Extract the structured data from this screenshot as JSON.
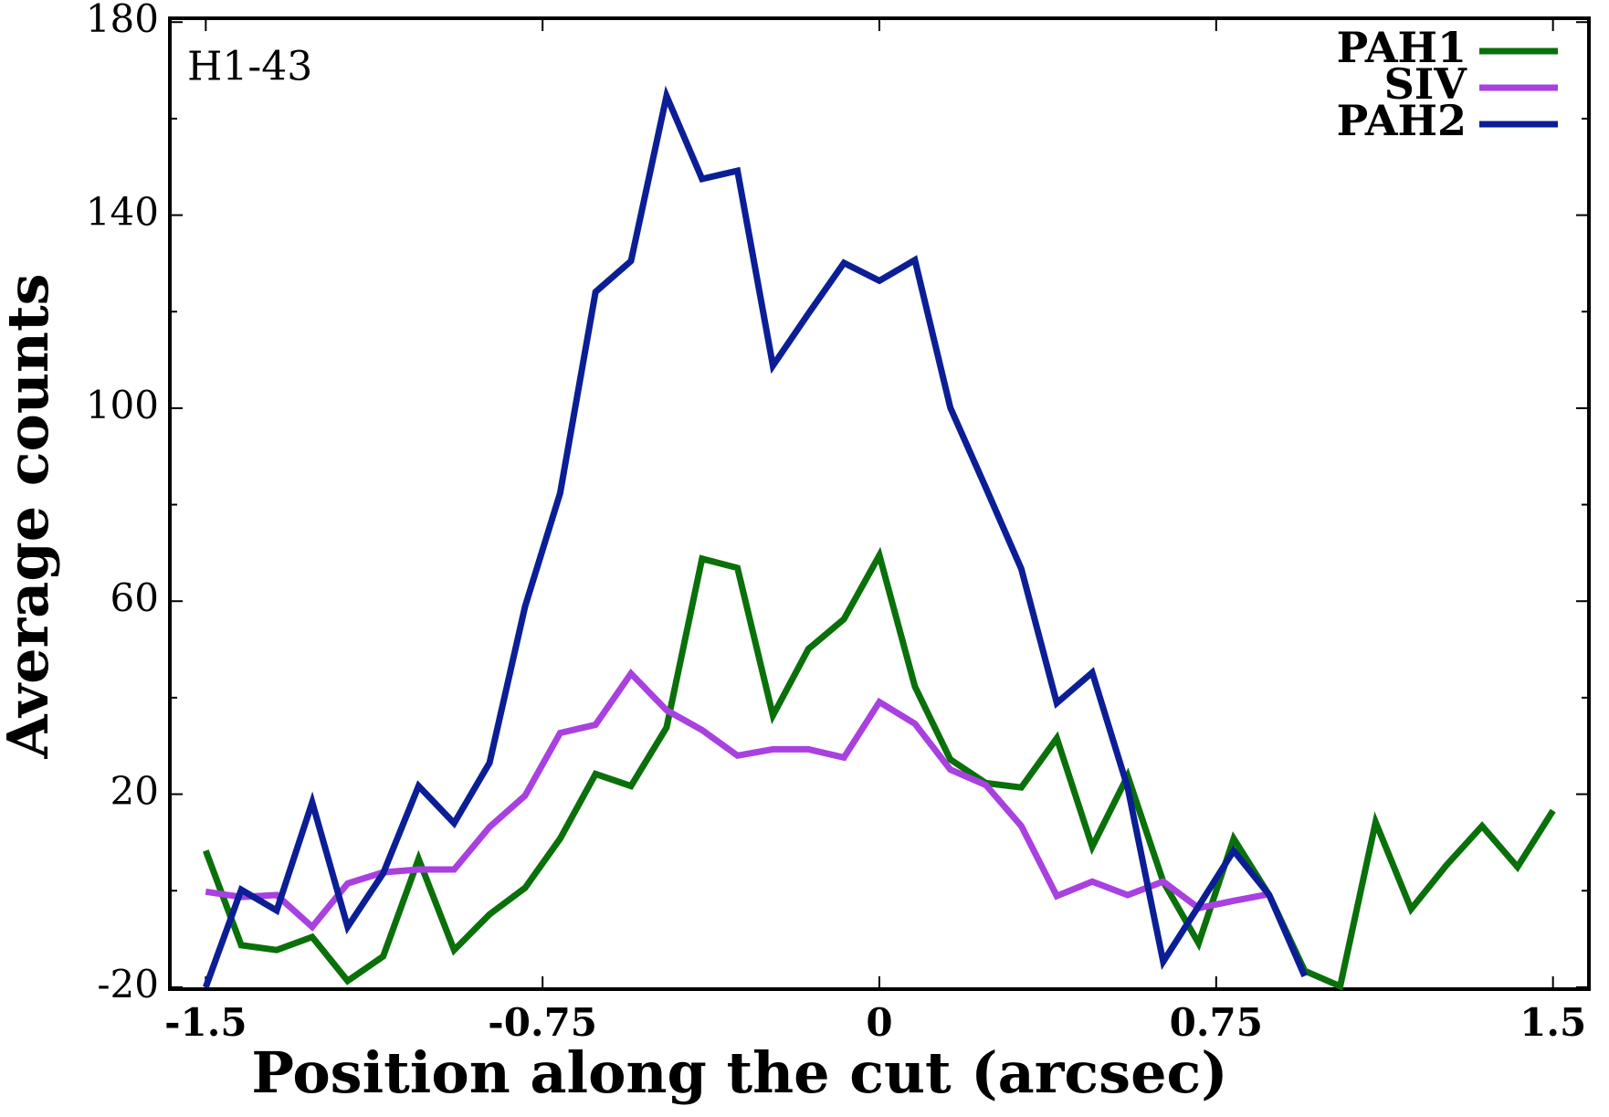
{
  "chart_data": {
    "type": "line",
    "xlabel": "Position along the cut (arcsec)",
    "ylabel": "Average counts",
    "annotation": "H1-43",
    "x": [
      -1.5,
      -1.421,
      -1.342,
      -1.263,
      -1.184,
      -1.105,
      -1.026,
      -0.947,
      -0.868,
      -0.789,
      -0.711,
      -0.632,
      -0.553,
      -0.474,
      -0.395,
      -0.316,
      -0.237,
      -0.158,
      -0.079,
      0,
      0.079,
      0.158,
      0.237,
      0.316,
      0.395,
      0.474,
      0.553,
      0.632,
      0.711,
      0.789,
      0.868,
      0.947,
      1.026,
      1.105,
      1.184,
      1.263,
      1.342,
      1.421,
      1.5
    ],
    "series": [
      {
        "name": "PAH1",
        "color": "#0a700a",
        "values": [
          8.3,
          -11.3,
          -12.3,
          -9.6,
          -18.7,
          -13.6,
          6.6,
          -12.3,
          -4.9,
          0.6,
          10.8,
          24.2,
          21.7,
          33.8,
          68.8,
          66.9,
          36.3,
          50.1,
          56.3,
          69.5,
          42.3,
          27.2,
          22.3,
          21.4,
          31.6,
          9.1,
          23.8,
          1.9,
          -10.9,
          10.8,
          -0.9,
          -16.6,
          -19.8,
          14.2,
          -3.8,
          5.3,
          13.4,
          4.9,
          16.6
        ]
      },
      {
        "name": "SIV",
        "color": "#a940e0",
        "values": [
          -0.2,
          -1.3,
          -0.9,
          -7.5,
          1.5,
          3.8,
          4.4,
          4.4,
          13.2,
          19.7,
          32.7,
          34.4,
          45.0,
          37.4,
          33.3,
          28.0,
          29.3,
          29.3,
          27.6,
          39.1,
          34.6,
          25.1,
          21.9,
          13.4,
          -1.1,
          1.9,
          -0.9,
          1.9,
          -3.6,
          -2.1,
          -0.7,
          null,
          null,
          null,
          null,
          null,
          null,
          null,
          null
        ]
      },
      {
        "name": "PAH2",
        "color": "#0c1e96",
        "values": [
          -20,
          0.2,
          -4.1,
          18.3,
          -7.5,
          3.6,
          21.7,
          14.0,
          26.5,
          58.9,
          82.4,
          124.1,
          130.5,
          164.7,
          147.5,
          149.2,
          108.8,
          119.6,
          130.1,
          126.4,
          130.7,
          100.1,
          83.5,
          66.7,
          38.9,
          45.2,
          21.4,
          -14.7,
          -3.2,
          8.3,
          -0.9,
          -17.7,
          null,
          null,
          null,
          null,
          null,
          null,
          null
        ]
      }
    ],
    "xlim": [
      -1.58,
      1.58
    ],
    "ylim": [
      -20.4,
      180.8
    ],
    "xticks": [
      -1.5,
      -0.75,
      0,
      0.75,
      1.5
    ],
    "yticks": [
      -20,
      20,
      60,
      100,
      140,
      180
    ],
    "yticks_minor": [
      0,
      40,
      80,
      120,
      160
    ],
    "legend": "upper right",
    "grid": false
  }
}
